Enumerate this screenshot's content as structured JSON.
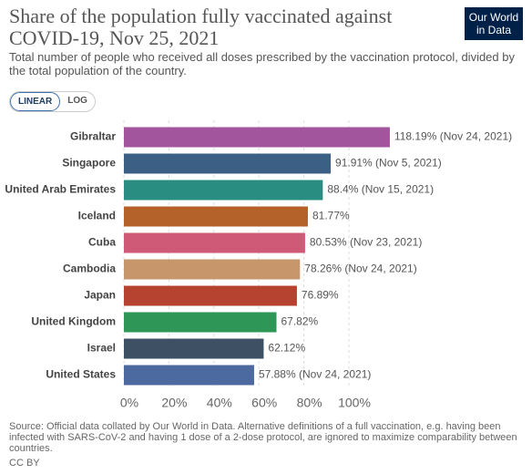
{
  "chart_data": {
    "type": "bar",
    "orientation": "horizontal",
    "title": "Share of the population fully vaccinated against COVID-19, Nov 25, 2021",
    "subtitle": "Total number of people who received all doses prescribed by the vaccination protocol, divided by the total population of the country.",
    "logo": [
      "Our World",
      "in Data"
    ],
    "scale_buttons": [
      "LINEAR",
      "LOG"
    ],
    "log_scale": false,
    "categories": [
      "Gibraltar",
      "Singapore",
      "United Arab Emirates",
      "Iceland",
      "Cuba",
      "Cambodia",
      "Japan",
      "United Kingdom",
      "Israel",
      "United States"
    ],
    "values": [
      118.19,
      91.91,
      88.4,
      81.77,
      80.53,
      78.26,
      76.89,
      67.82,
      62.12,
      57.88
    ],
    "value_labels": [
      "118.19% (Nov 24, 2021)",
      "91.91% (Nov 5, 2021)",
      "88.4% (Nov 15, 2021)",
      "81.77%",
      "80.53% (Nov 23, 2021)",
      "78.26% (Nov 24, 2021)",
      "76.89%",
      "67.82%",
      "62.12%",
      "57.88% (Nov 24, 2021)"
    ],
    "colors": [
      "#a2559c",
      "#3c5f86",
      "#2a8d82",
      "#b4612a",
      "#cf5a78",
      "#c8966b",
      "#b5432f",
      "#2e9656",
      "#3e5064",
      "#4d6aa0"
    ],
    "xlim": [
      0,
      120
    ],
    "xticks": [
      {
        "value": 0,
        "label": "0%"
      },
      {
        "value": 20,
        "label": "20%"
      },
      {
        "value": 40,
        "label": "40%"
      },
      {
        "value": 60,
        "label": "60%"
      },
      {
        "value": 80,
        "label": "80%"
      },
      {
        "value": 100,
        "label": "100%"
      }
    ],
    "grid": true,
    "source": "Source: Official data collated by Our World in Data. Alternative definitions of a full vaccination, e.g. having been infected with SARS-CoV-2 and having 1 dose of a 2-dose protocol, are ignored to maximize comparability between countries.",
    "license": "CC BY"
  }
}
